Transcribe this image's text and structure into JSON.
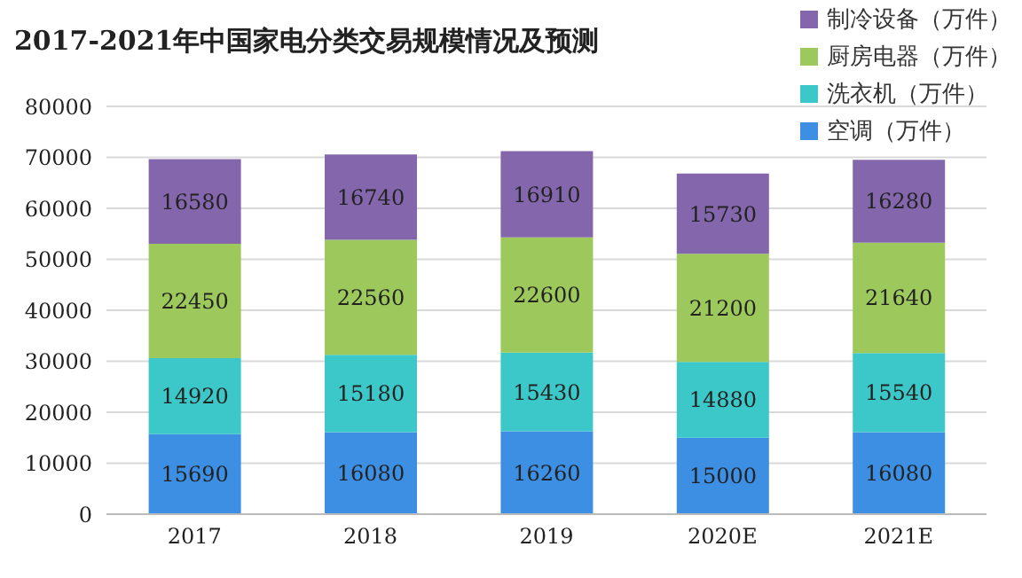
{
  "chart_data": {
    "type": "bar",
    "title": "2017-2021年中国家电分类交易规模情况及预测",
    "categories": [
      "2017",
      "2018",
      "2019",
      "2020E",
      "2021E"
    ],
    "stacked": true,
    "series": [
      {
        "name": "空调（万件）",
        "color": "#3c8fe3",
        "values": [
          15690,
          16080,
          16260,
          15000,
          16080
        ]
      },
      {
        "name": "洗衣机（万件）",
        "color": "#3cc8c8",
        "values": [
          14920,
          15180,
          15430,
          14880,
          15540
        ]
      },
      {
        "name": "厨房电器（万件）",
        "color": "#9cc85c",
        "values": [
          22450,
          22560,
          22600,
          21200,
          21640
        ]
      },
      {
        "name": "制冷设备（万件）",
        "color": "#8466ac",
        "values": [
          16580,
          16740,
          16910,
          15730,
          16280
        ]
      }
    ],
    "ylim": [
      0,
      80000
    ],
    "yticks": [
      0,
      10000,
      20000,
      30000,
      40000,
      50000,
      60000,
      70000,
      80000
    ],
    "grid": "y",
    "legend": "top right",
    "data_labels": true
  }
}
